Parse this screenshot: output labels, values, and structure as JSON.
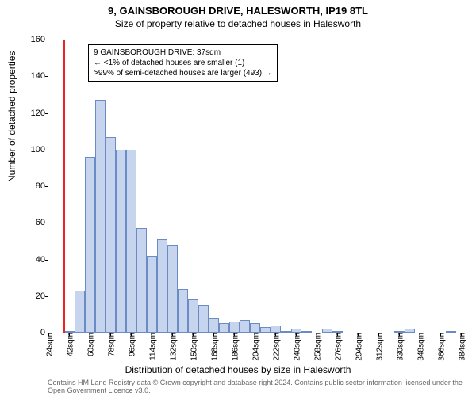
{
  "title": "9, GAINSBOROUGH DRIVE, HALESWORTH, IP19 8TL",
  "subtitle": "Size of property relative to detached houses in Halesworth",
  "ylabel": "Number of detached properties",
  "xlabel": "Distribution of detached houses by size in Halesworth",
  "attribution": "Contains HM Land Registry data © Crown copyright and database right 2024. Contains public sector information licensed under the Open Government Licence v3.0.",
  "chart": {
    "type": "bar",
    "ylim": [
      0,
      160
    ],
    "ytick_step": 20,
    "xticks": [
      "24sqm",
      "42sqm",
      "60sqm",
      "78sqm",
      "96sqm",
      "114sqm",
      "132sqm",
      "150sqm",
      "168sqm",
      "186sqm",
      "204sqm",
      "222sqm",
      "240sqm",
      "258sqm",
      "276sqm",
      "294sqm",
      "312sqm",
      "330sqm",
      "348sqm",
      "366sqm",
      "384sqm"
    ],
    "bars": [
      {
        "x": 33,
        "value": 0
      },
      {
        "x": 42,
        "value": 1
      },
      {
        "x": 51,
        "value": 23
      },
      {
        "x": 60,
        "value": 96
      },
      {
        "x": 69,
        "value": 127
      },
      {
        "x": 78,
        "value": 107
      },
      {
        "x": 87,
        "value": 100
      },
      {
        "x": 96,
        "value": 100
      },
      {
        "x": 105,
        "value": 57
      },
      {
        "x": 114,
        "value": 42
      },
      {
        "x": 123,
        "value": 51
      },
      {
        "x": 132,
        "value": 48
      },
      {
        "x": 141,
        "value": 24
      },
      {
        "x": 150,
        "value": 18
      },
      {
        "x": 159,
        "value": 15
      },
      {
        "x": 168,
        "value": 8
      },
      {
        "x": 177,
        "value": 5
      },
      {
        "x": 186,
        "value": 6
      },
      {
        "x": 195,
        "value": 7
      },
      {
        "x": 204,
        "value": 5
      },
      {
        "x": 213,
        "value": 3
      },
      {
        "x": 222,
        "value": 4
      },
      {
        "x": 231,
        "value": 1
      },
      {
        "x": 240,
        "value": 2
      },
      {
        "x": 249,
        "value": 1
      },
      {
        "x": 258,
        "value": 0
      },
      {
        "x": 267,
        "value": 2
      },
      {
        "x": 276,
        "value": 1
      },
      {
        "x": 285,
        "value": 0
      },
      {
        "x": 294,
        "value": 0
      },
      {
        "x": 303,
        "value": 0
      },
      {
        "x": 312,
        "value": 0
      },
      {
        "x": 321,
        "value": 0
      },
      {
        "x": 330,
        "value": 1
      },
      {
        "x": 339,
        "value": 2
      },
      {
        "x": 348,
        "value": 0
      },
      {
        "x": 357,
        "value": 0
      },
      {
        "x": 366,
        "value": 0
      },
      {
        "x": 375,
        "value": 1
      }
    ],
    "x_min": 24,
    "x_max": 384,
    "bar_width_units": 9,
    "bar_fill": "#c6d4ee",
    "bar_stroke": "#6b8bc5",
    "redline_x": 37,
    "redline_color": "#ee2222",
    "background": "#ffffff"
  },
  "annotation": {
    "line1": "9 GAINSBOROUGH DRIVE: 37sqm",
    "line2": "← <1% of detached houses are smaller (1)",
    "line3": ">99% of semi-detached houses are larger (493) →"
  }
}
